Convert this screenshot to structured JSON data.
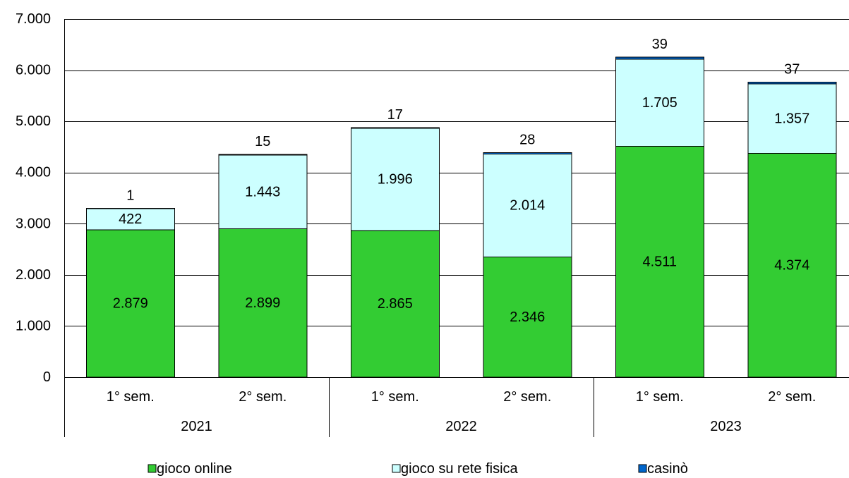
{
  "chart_data": {
    "type": "bar",
    "stacked": true,
    "years": [
      "2021",
      "2022",
      "2023"
    ],
    "categories": [
      "1° sem.",
      "2° sem.",
      "1° sem.",
      "2° sem.",
      "1° sem.",
      "2° sem."
    ],
    "ylim": [
      0,
      7000
    ],
    "y_ticks": [
      0,
      1000,
      2000,
      3000,
      4000,
      5000,
      6000,
      7000
    ],
    "y_tick_labels": [
      "0",
      "1.000",
      "2.000",
      "3.000",
      "4.000",
      "5.000",
      "6.000",
      "7.000"
    ],
    "grid": true,
    "legend": "bottom",
    "series": [
      {
        "name": "gioco online",
        "color": "#33CC33",
        "values": [
          2879,
          2899,
          2865,
          2346,
          4511,
          4374
        ],
        "labels": [
          "2.879",
          "2.899",
          "2.865",
          "2.346",
          "4.511",
          "4.374"
        ]
      },
      {
        "name": "gioco su rete fisica",
        "color": "#CCFFFF",
        "values": [
          422,
          1443,
          1996,
          2014,
          1705,
          1357
        ],
        "labels": [
          "422",
          "1.443",
          "1.996",
          "2.014",
          "1.705",
          "1.357"
        ]
      },
      {
        "name": "casinò",
        "color": "#0066CC",
        "values": [
          1,
          15,
          17,
          28,
          39,
          37
        ],
        "labels": [
          "1",
          "15",
          "17",
          "28",
          "39",
          "37"
        ]
      }
    ]
  }
}
